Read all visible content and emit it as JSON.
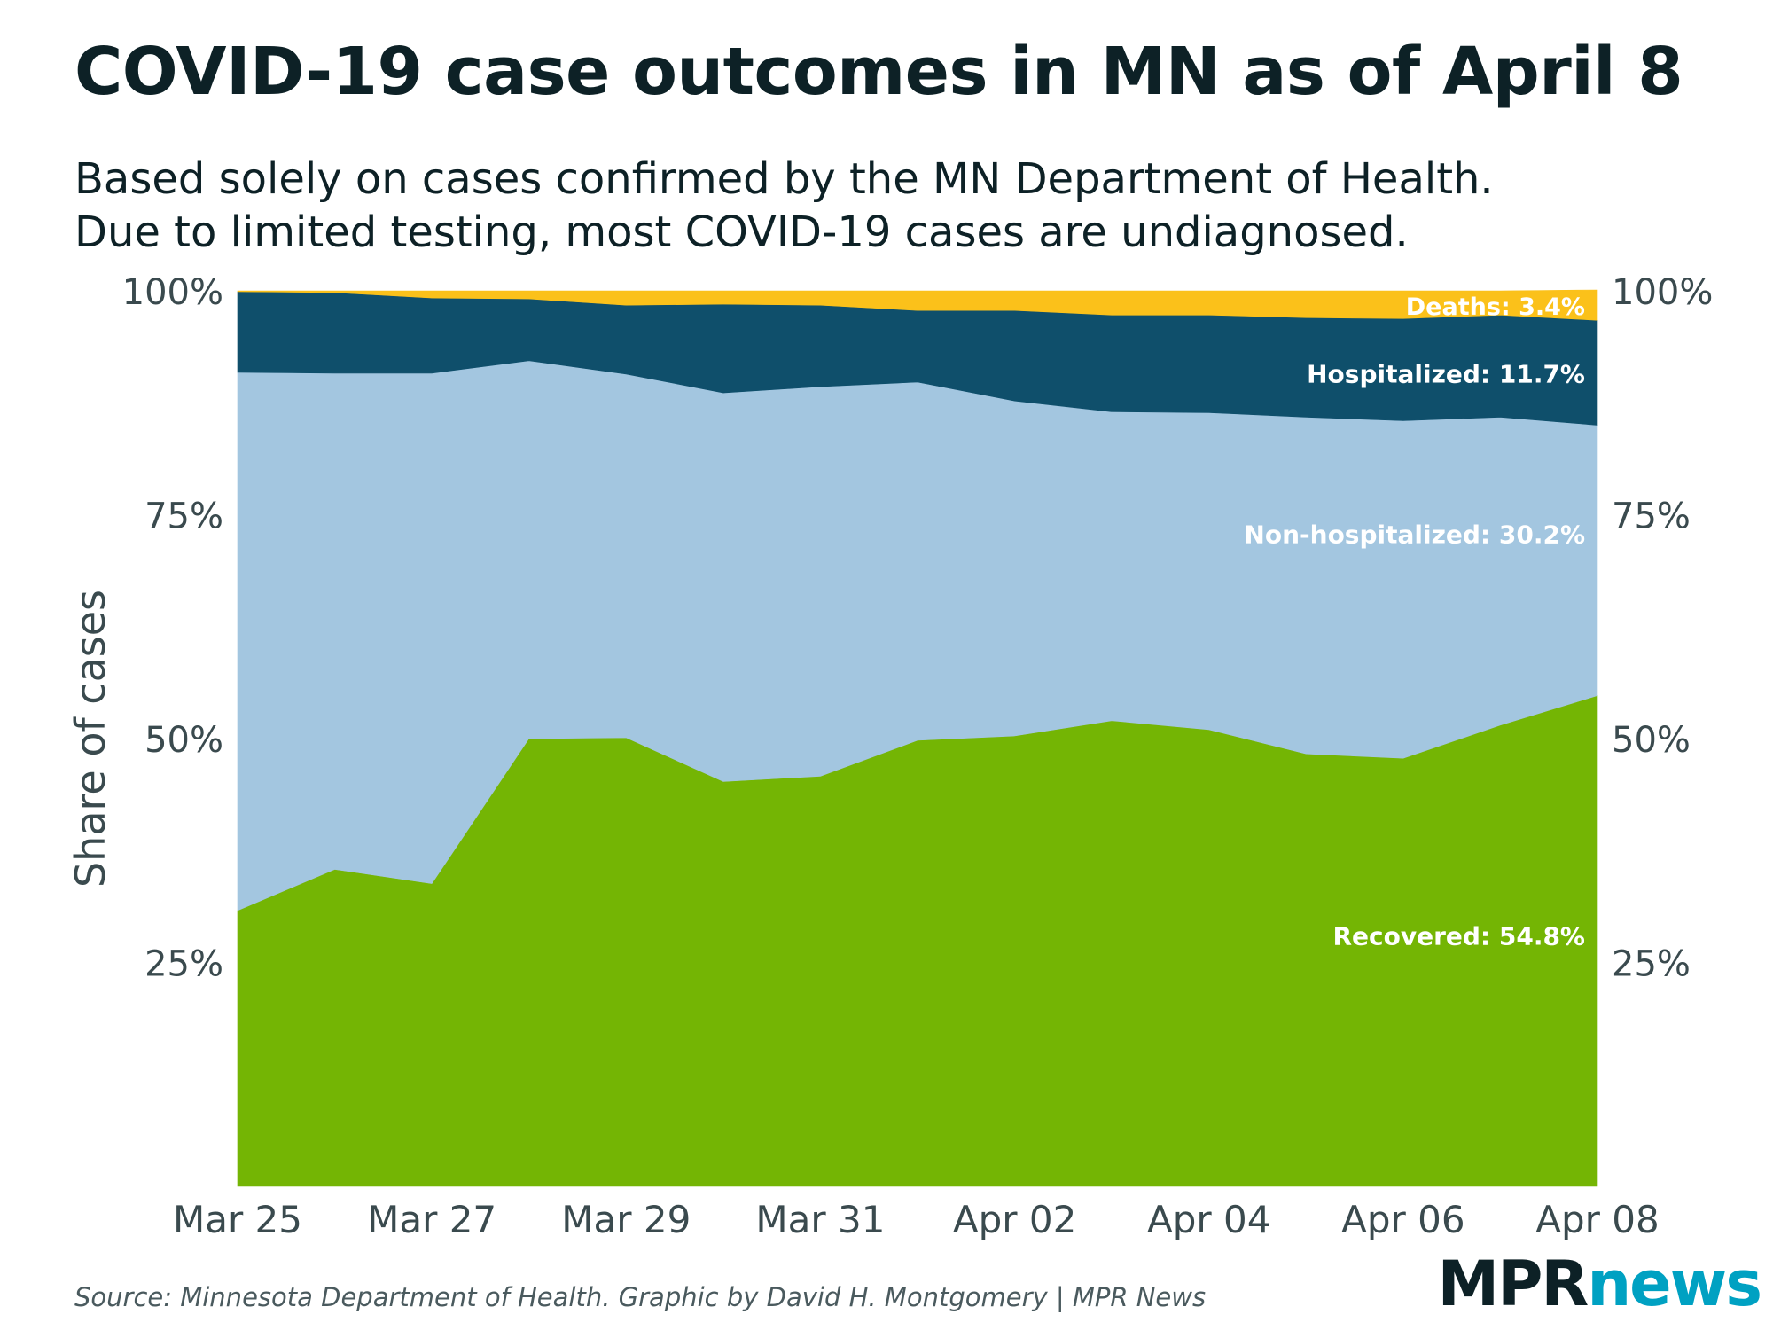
{
  "title": "COVID-19 case outcomes in MN as of April 8",
  "subtitle": [
    "Based solely on cases confirmed by the MN Department of Health.",
    "Due to limited testing, most COVID-19 cases are undiagnosed."
  ],
  "source": "Source: Minnesota Department of Health. Graphic by David H. Montgomery | MPR News",
  "logo": {
    "part1": "MPR",
    "part2": "news",
    "color1": "#0d2126",
    "color2": "#00a1c2"
  },
  "chart_data": {
    "type": "area",
    "stacked": true,
    "ylabel": "Share of cases",
    "xlabel": "",
    "ylim": [
      0,
      100
    ],
    "yticks": [
      25,
      50,
      75,
      100
    ],
    "ytick_labels": [
      "25%",
      "50%",
      "75%",
      "100%"
    ],
    "y_axis_both_sides": true,
    "grid": false,
    "x": [
      "2020-03-25",
      "2020-03-26",
      "2020-03-27",
      "2020-03-28",
      "2020-03-29",
      "2020-03-30",
      "2020-03-31",
      "2020-04-01",
      "2020-04-02",
      "2020-04-03",
      "2020-04-04",
      "2020-04-05",
      "2020-04-06",
      "2020-04-07",
      "2020-04-08"
    ],
    "xtick_labels": [
      "Mar 25",
      "Mar 27",
      "Mar 29",
      "Mar 31",
      "Apr 02",
      "Apr 04",
      "Apr 06",
      "Apr 08"
    ],
    "series": [
      {
        "name": "Recovered",
        "color": "#74b504",
        "values": [
          30.8,
          35.4,
          33.8,
          50.0,
          50.1,
          45.2,
          45.8,
          49.8,
          50.3,
          52.0,
          51.0,
          48.3,
          47.8,
          51.5,
          54.8
        ]
      },
      {
        "name": "Non-hospitalized",
        "color": "#a3c6e0",
        "values": [
          60.1,
          55.4,
          57.0,
          42.2,
          40.6,
          43.4,
          43.5,
          40.0,
          37.4,
          34.5,
          35.4,
          37.6,
          37.7,
          34.4,
          30.2
        ]
      },
      {
        "name": "Hospitalized",
        "color": "#0f4f6b",
        "values": [
          9.0,
          9.0,
          8.4,
          6.9,
          7.7,
          9.9,
          9.1,
          8.0,
          10.1,
          10.8,
          10.9,
          11.1,
          11.4,
          11.4,
          11.7
        ]
      },
      {
        "name": "Deaths",
        "color": "#fbc11a",
        "values": [
          0.1,
          0.2,
          0.8,
          0.9,
          1.6,
          1.5,
          1.6,
          2.2,
          2.2,
          2.7,
          2.7,
          3.0,
          3.1,
          2.7,
          3.4
        ]
      }
    ],
    "end_labels": [
      {
        "series": "Deaths",
        "text": "Deaths: 3.4%"
      },
      {
        "series": "Hospitalized",
        "text": "Hospitalized: 11.7%"
      },
      {
        "series": "Non-hospitalized",
        "text": "Non-hospitalized: 30.2%"
      },
      {
        "series": "Recovered",
        "text": "Recovered: 54.8%"
      }
    ]
  }
}
